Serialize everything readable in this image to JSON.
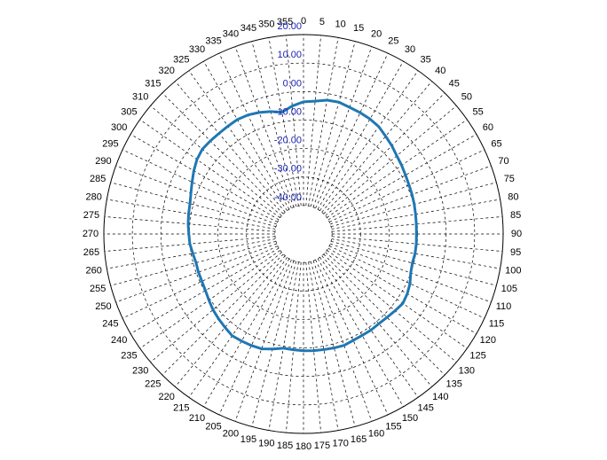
{
  "chart_data": {
    "type": "polar-line",
    "title": "",
    "angles_deg": [
      0,
      5,
      10,
      15,
      20,
      25,
      30,
      35,
      40,
      45,
      50,
      55,
      60,
      65,
      70,
      75,
      80,
      85,
      90,
      95,
      100,
      105,
      110,
      115,
      120,
      125,
      130,
      135,
      140,
      145,
      150,
      155,
      160,
      165,
      170,
      175,
      180,
      185,
      190,
      195,
      200,
      205,
      210,
      215,
      220,
      225,
      230,
      235,
      240,
      245,
      250,
      255,
      260,
      265,
      270,
      275,
      280,
      285,
      290,
      295,
      300,
      305,
      310,
      315,
      320,
      325,
      330,
      335,
      340,
      345,
      350,
      355
    ],
    "angle_labels": [
      "0",
      "5",
      "10",
      "15",
      "20",
      "25",
      "30",
      "35",
      "40",
      "45",
      "50",
      "55",
      "60",
      "65",
      "70",
      "75",
      "80",
      "85",
      "90",
      "95",
      "100",
      "105",
      "110",
      "115",
      "120",
      "125",
      "130",
      "135",
      "140",
      "145",
      "150",
      "155",
      "160",
      "165",
      "170",
      "175",
      "180",
      "185",
      "190",
      "195",
      "200",
      "205",
      "210",
      "215",
      "220",
      "225",
      "230",
      "235",
      "240",
      "245",
      "250",
      "255",
      "260",
      "265",
      "270",
      "275",
      "280",
      "285",
      "290",
      "295",
      "300",
      "305",
      "310",
      "315",
      "320",
      "325",
      "330",
      "335",
      "340",
      "345",
      "350",
      "355"
    ],
    "radial_ticks": [
      -40,
      -30,
      -20,
      -10,
      0,
      10,
      20
    ],
    "radial_tick_labels": [
      "-40.00",
      "-30.00",
      "-20.00",
      "-10.00",
      "0.00",
      "10.00",
      "20.00"
    ],
    "rlim": [
      -50,
      20
    ],
    "grid": true,
    "series": [
      {
        "values": [
          -3.6,
          -3.2,
          -2.3,
          -2.1,
          -2.7,
          -3.0,
          -3.4,
          -4.0,
          -5.2,
          -6.2,
          -7.3,
          -8.0,
          -8.7,
          -9.2,
          -9.5,
          -9.8,
          -10.1,
          -10.3,
          -10.4,
          -10.3,
          -10.3,
          -10.5,
          -10.0,
          -8.8,
          -8.0,
          -7.5,
          -8.1,
          -8.6,
          -8.9,
          -8.8,
          -8.9,
          -8.8,
          -8.4,
          -8.6,
          -8.8,
          -8.9,
          -9.0,
          -9.2,
          -9.3,
          -8.2,
          -7.1,
          -6.8,
          -6.6,
          -6.4,
          -7.2,
          -7.9,
          -8.6,
          -9.5,
          -10.3,
          -10.7,
          -10.8,
          -11.0,
          -10.6,
          -10.0,
          -9.8,
          -9.4,
          -9.1,
          -8.8,
          -8.0,
          -6.9,
          -5.6,
          -4.4,
          -3.7,
          -3.8,
          -3.9,
          -3.8,
          -3.6,
          -3.9,
          -4.6,
          -5.5,
          -6.6,
          -4.9
        ],
        "color": "#1f77b4"
      }
    ],
    "colors": {
      "grid": "#000000",
      "radial_label": "#1a24b0",
      "series": "#1f77b4"
    }
  }
}
